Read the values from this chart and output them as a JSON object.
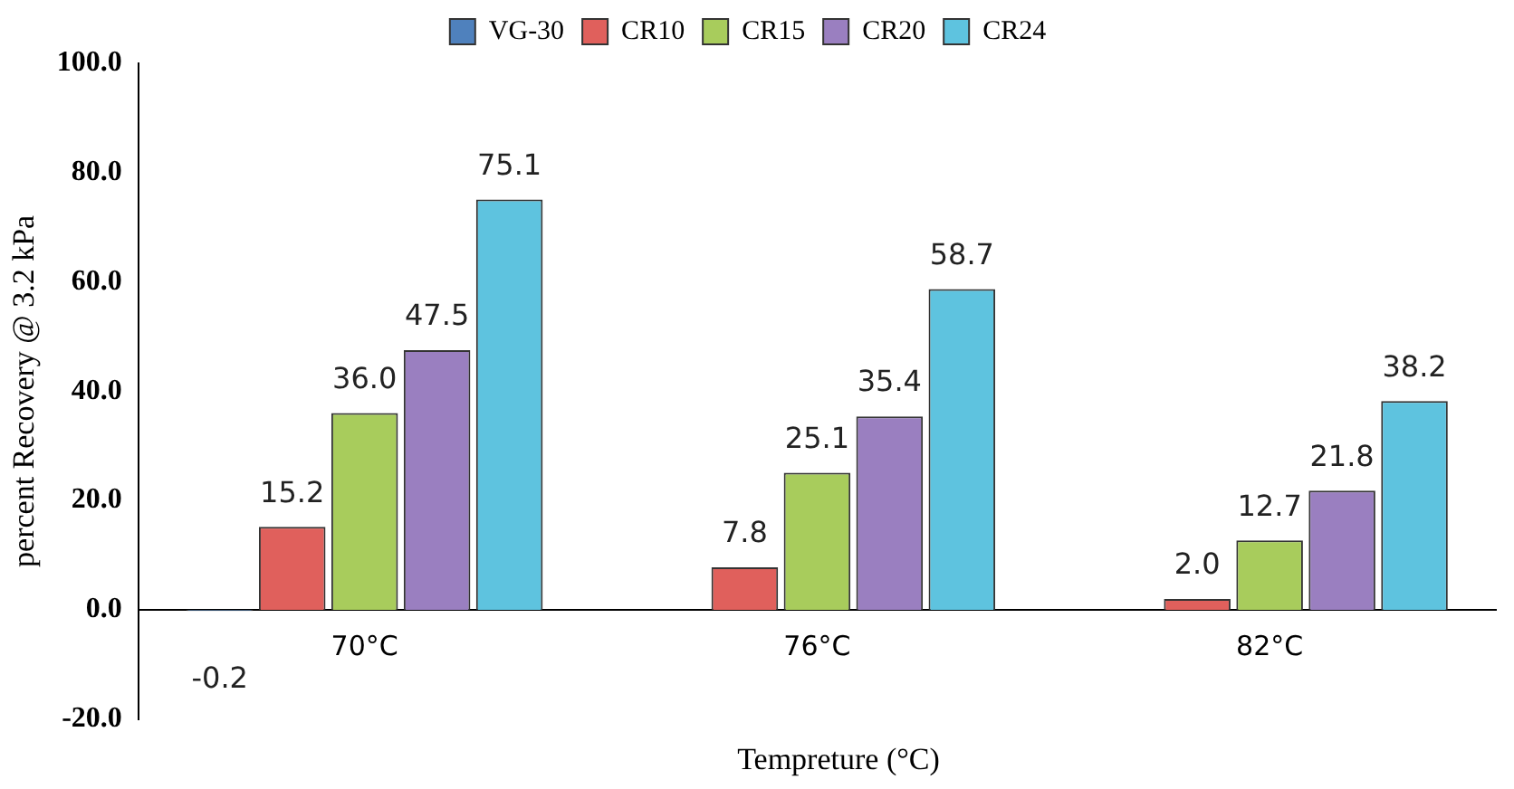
{
  "chart_data": {
    "type": "bar",
    "xlabel": "Tempreture (°C)",
    "ylabel": "percent Recovery @ 3.2 kPa",
    "categories": [
      "70°C",
      "76°C",
      "82°C"
    ],
    "series": [
      {
        "name": "VG-30",
        "color": "#4f81bd",
        "values": [
          -0.2,
          null,
          null
        ],
        "value_labels": [
          "-0.2",
          null,
          null
        ]
      },
      {
        "name": "CR10",
        "color": "#e0605c",
        "values": [
          15.2,
          7.8,
          2.0
        ],
        "value_labels": [
          "15.2",
          "7.8",
          "2.0"
        ]
      },
      {
        "name": "CR15",
        "color": "#a8cc5c",
        "values": [
          36.0,
          25.1,
          12.7
        ],
        "value_labels": [
          "36.0",
          "25.1",
          "12.7"
        ]
      },
      {
        "name": "CR20",
        "color": "#9a7fc0",
        "values": [
          47.5,
          35.4,
          21.8
        ],
        "value_labels": [
          "47.5",
          "35.4",
          "21.8"
        ]
      },
      {
        "name": "CR24",
        "color": "#5ec3df",
        "values": [
          75.1,
          58.7,
          38.2
        ],
        "value_labels": [
          "75.1",
          "58.7",
          "38.2"
        ]
      }
    ],
    "ylim": [
      -20,
      100
    ],
    "yticks": [
      {
        "value": -20,
        "label": "-20.0"
      },
      {
        "value": 0,
        "label": "0.0"
      },
      {
        "value": 20,
        "label": "20.0"
      },
      {
        "value": 40,
        "label": "40.0"
      },
      {
        "value": 60,
        "label": "60.0"
      },
      {
        "value": 80,
        "label": "80.0"
      },
      {
        "value": 100,
        "label": "100.0"
      }
    ],
    "legend": "top",
    "grid": false
  }
}
